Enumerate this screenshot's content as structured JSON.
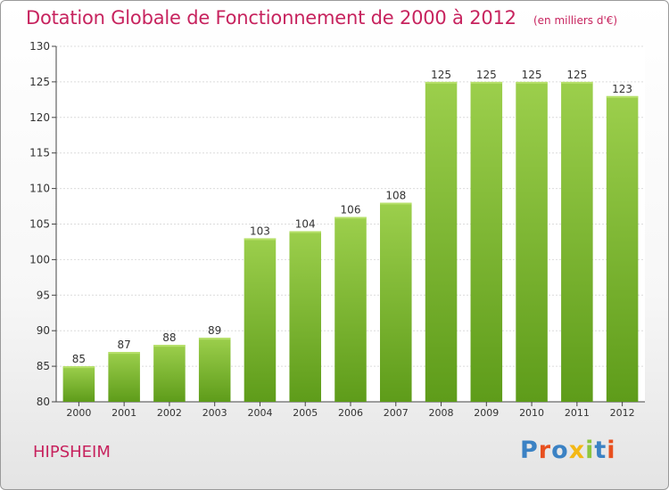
{
  "header": {
    "title": "Dotation Globale de Fonctionnement de 2000 à 2012",
    "subtitle": "(en milliers d'€)"
  },
  "footer": {
    "commune": "HIPSHEIM",
    "brand": "Proxiti",
    "brand_colors": [
      "#3b82c4",
      "#e8501f",
      "#3b82c4",
      "#f3b815",
      "#8cc63f",
      "#3b82c4",
      "#e8501f"
    ]
  },
  "colors": {
    "accent": "#c7235e",
    "bar_top": "#9ccf4c",
    "bar_bottom": "#5e9c1a"
  },
  "chart_data": {
    "type": "bar",
    "categories": [
      "2000",
      "2001",
      "2002",
      "2003",
      "2004",
      "2005",
      "2006",
      "2007",
      "2008",
      "2009",
      "2010",
      "2011",
      "2012"
    ],
    "values": [
      85,
      87,
      88,
      89,
      103,
      104,
      106,
      108,
      125,
      125,
      125,
      125,
      123
    ],
    "ylim": [
      80,
      130
    ],
    "yticks": [
      80,
      85,
      90,
      95,
      100,
      105,
      110,
      115,
      120,
      125,
      130
    ],
    "grid": true,
    "title": "Dotation Globale de Fonctionnement de 2000 à 2012",
    "subtitle": "(en milliers d'€)"
  }
}
